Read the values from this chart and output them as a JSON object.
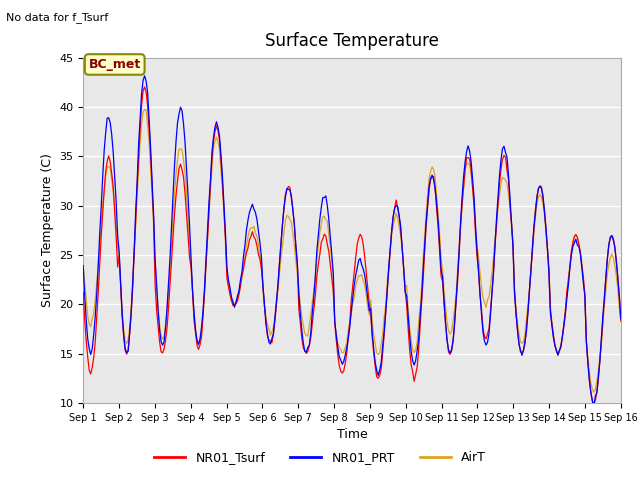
{
  "title": "Surface Temperature",
  "xlabel": "Time",
  "ylabel": "Surface Temperature (C)",
  "ylim": [
    10,
    45
  ],
  "xlim": [
    0,
    15
  ],
  "background_color": "#ffffff",
  "plot_bg_color": "#e8e8e8",
  "grid_color": "#ffffff",
  "annotation_text": "No data for f_Tsurf",
  "bc_label": "BC_met",
  "legend_labels": [
    "NR01_Tsurf",
    "NR01_PRT",
    "AirT"
  ],
  "legend_colors": [
    "red",
    "blue",
    "goldenrod"
  ],
  "xtick_labels": [
    "Sep 1",
    "Sep 2",
    "Sep 3",
    "Sep 4",
    "Sep 5",
    "Sep 6",
    "Sep 7",
    "Sep 8",
    "Sep 9",
    "Sep 10",
    "Sep 11",
    "Sep 12",
    "Sep 13",
    "Sep 14",
    "Sep 15",
    "Sep 16"
  ],
  "ytick_values": [
    10,
    15,
    20,
    25,
    30,
    35,
    40,
    45
  ],
  "day_mins_r": [
    13,
    15,
    15,
    15.5,
    20,
    16,
    15,
    13,
    12.5,
    12.5,
    15,
    16.5,
    15,
    15,
    10
  ],
  "day_maxs_r": [
    35,
    42,
    34,
    38,
    27,
    32,
    27,
    27,
    30,
    33,
    35,
    35,
    32,
    27,
    27
  ],
  "day_mins_b": [
    15,
    15,
    16,
    16,
    20,
    16,
    15,
    14,
    13,
    14,
    15,
    16,
    15,
    15,
    10
  ],
  "day_maxs_b": [
    39,
    43,
    40,
    38.5,
    30,
    32,
    31,
    24.5,
    30,
    33,
    36,
    36,
    32,
    26.5,
    27
  ],
  "day_mins_o": [
    18,
    16,
    16.5,
    16,
    20,
    17,
    17,
    15,
    15,
    15,
    17,
    20,
    16,
    15,
    11
  ],
  "day_maxs_o": [
    34,
    40,
    36,
    37,
    28,
    29,
    29,
    23,
    29,
    34,
    34.5,
    33,
    31,
    27,
    25
  ]
}
